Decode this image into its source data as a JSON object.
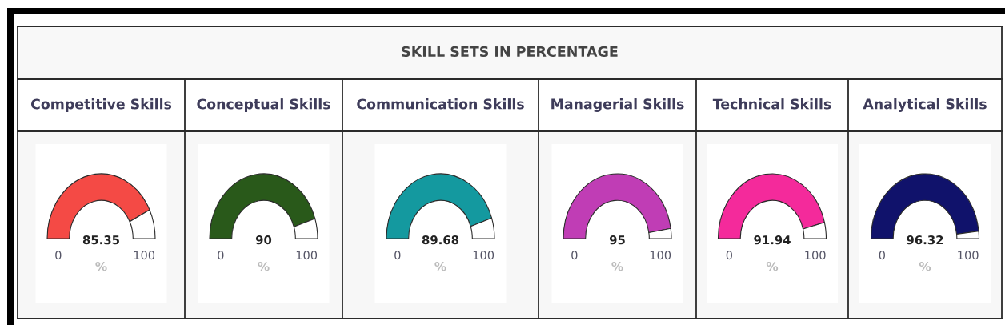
{
  "chart_data": [
    {
      "type": "other",
      "title": "SKILL SETS IN PERCENTAGE"
    },
    {
      "type": "donut",
      "title": "Competitive Skills",
      "categories": [
        null,
        null
      ],
      "values": [
        85.35,
        14.65
      ],
      "colors": [
        "#f44a45",
        "#ffffff"
      ],
      "annotations": [
        "85.35",
        "0",
        "100",
        "%"
      ]
    },
    {
      "type": "donut",
      "title": "Conceptual Skills",
      "categories": [
        null,
        null
      ],
      "values": [
        90,
        10
      ],
      "colors": [
        "#29591a",
        "#ffffff"
      ],
      "annotations": [
        "90",
        "0",
        "100",
        "%"
      ]
    },
    {
      "type": "donut",
      "title": "Communication Skills",
      "categories": [
        null,
        null
      ],
      "values": [
        89.68,
        10.32
      ],
      "colors": [
        "#14999f",
        "#ffffff"
      ],
      "annotations": [
        "89.68",
        "0",
        "100",
        "%"
      ]
    },
    {
      "type": "donut",
      "title": "Managerial Skills",
      "categories": [
        null,
        null
      ],
      "values": [
        95,
        5
      ],
      "colors": [
        "#c03db5",
        "#ffffff"
      ],
      "annotations": [
        "95",
        "0",
        "100",
        "%"
      ]
    },
    {
      "type": "donut",
      "title": "Technical Skills",
      "categories": [
        null,
        null
      ],
      "values": [
        91.94,
        8.06
      ],
      "colors": [
        "#f42a9b",
        "#ffffff"
      ],
      "annotations": [
        "91.94",
        "0",
        "100",
        "%"
      ]
    },
    {
      "type": "donut",
      "title": "Analytical Skills",
      "categories": [
        null,
        null
      ],
      "values": [
        96.32,
        3.68
      ],
      "colors": [
        "#10126b",
        "#ffffff"
      ],
      "annotations": [
        "96.32",
        "0",
        "100",
        "%"
      ]
    }
  ]
}
